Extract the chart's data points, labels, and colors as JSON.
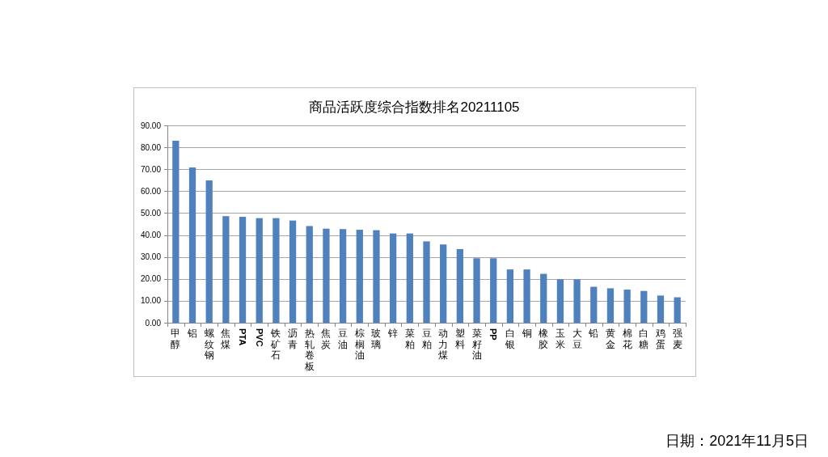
{
  "chart_data": {
    "type": "bar",
    "title": "商品活跃度综合指数排名20211105",
    "categories": [
      "甲醇",
      "铝",
      "螺纹钢",
      "焦煤",
      "PTA",
      "PVC",
      "铁矿石",
      "沥青",
      "热轧卷板",
      "焦炭",
      "豆油",
      "棕榈油",
      "玻璃",
      "锌",
      "菜粕",
      "豆粕",
      "动力煤",
      "塑料",
      "菜籽油",
      "PP",
      "白银",
      "铜",
      "橡胶",
      "玉米",
      "大豆",
      "铅",
      "黄金",
      "棉花",
      "白糖",
      "鸡蛋",
      "强麦"
    ],
    "values": [
      83.0,
      70.8,
      64.9,
      48.6,
      48.3,
      47.7,
      47.7,
      46.6,
      44.1,
      42.9,
      42.7,
      42.4,
      42.2,
      40.7,
      40.7,
      37.1,
      35.7,
      33.6,
      29.4,
      29.4,
      24.3,
      24.3,
      22.3,
      19.8,
      19.8,
      16.4,
      15.7,
      15.1,
      14.5,
      12.4,
      11.6
    ],
    "color": "#4f81bd",
    "ylim": [
      0,
      90
    ],
    "yticks": [
      {
        "value": 0,
        "label": "0.00"
      },
      {
        "value": 10,
        "label": "10.00"
      },
      {
        "value": 20,
        "label": "20.00"
      },
      {
        "value": 30,
        "label": "30.00"
      },
      {
        "value": 40,
        "label": "40.00"
      },
      {
        "value": 50,
        "label": "50.00"
      },
      {
        "value": 60,
        "label": "60.00"
      },
      {
        "value": 70,
        "label": "70.00"
      },
      {
        "value": 80,
        "label": "80.00"
      },
      {
        "value": 90,
        "label": "90.00"
      }
    ],
    "grid": "y",
    "annotations": [
      "日期：2021年11月5日"
    ]
  }
}
